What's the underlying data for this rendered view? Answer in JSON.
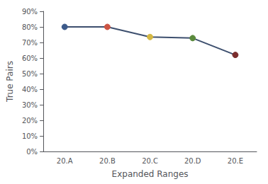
{
  "chart_data": {
    "type": "line",
    "xlabel": "Expanded Ranges",
    "ylabel": "True Pairs",
    "categories": [
      "20.A",
      "20.B",
      "20.C",
      "20.D",
      "20.E"
    ],
    "values": [
      0.8,
      0.8,
      0.735,
      0.728,
      0.62
    ],
    "color": "#3d4f6e",
    "colors": [
      "#3c5a8a",
      "#cc5544",
      "#d4b843",
      "#5a8a3c",
      "#7b2d2d"
    ],
    "marker": "circle",
    "ylim": [
      0.0,
      0.9
    ],
    "yticks": [
      {
        "value": 0.0,
        "label": "0%"
      },
      {
        "value": 0.1,
        "label": "10%"
      },
      {
        "value": 0.2,
        "label": "20%"
      },
      {
        "value": 0.3,
        "label": "30%"
      },
      {
        "value": 0.4,
        "label": "40%"
      },
      {
        "value": 0.5,
        "label": "50%"
      },
      {
        "value": 0.6,
        "label": "60%"
      },
      {
        "value": 0.7,
        "label": "70%"
      },
      {
        "value": 0.8,
        "label": "80%"
      },
      {
        "value": 0.9,
        "label": "90%"
      }
    ],
    "grid": false
  }
}
